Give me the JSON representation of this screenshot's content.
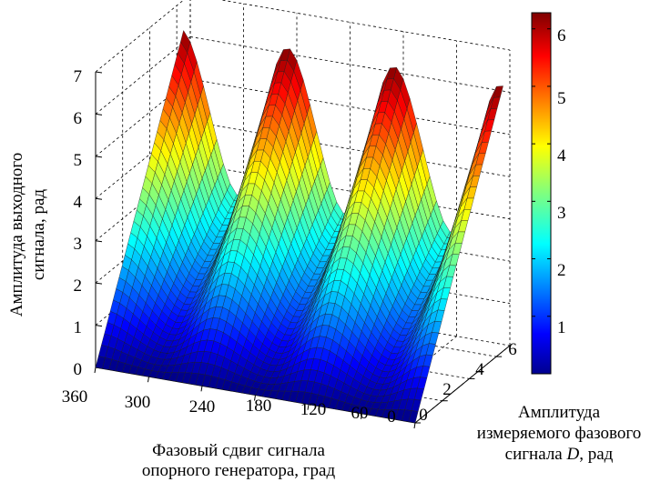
{
  "chart_data": {
    "type": "surface",
    "xlabel": "Фазовый сдвиг сигнала опорного генератора, град",
    "xlabel_lines": [
      "Фазовый сдвиг сигнала",
      "опорного генератора, град"
    ],
    "ylabel_lines": [
      "Амплитуда",
      "измеряемого фазового",
      "сигнала",
      "D",
      ", рад"
    ],
    "zlabel_lines": [
      "Амплитуда выходного",
      "сигнала, рад"
    ],
    "x_ticks": [
      "360",
      "300",
      "240",
      "180",
      "120",
      "60",
      "0"
    ],
    "y_ticks": [
      "0",
      "2",
      "4",
      "6"
    ],
    "z_ticks": [
      "0",
      "1",
      "2",
      "3",
      "4",
      "5",
      "6",
      "7"
    ],
    "colorbar_ticks": [
      "1",
      "2",
      "3",
      "4",
      "5",
      "6"
    ],
    "xlim": [
      0,
      360
    ],
    "ylim": [
      0,
      7
    ],
    "zlim": [
      0,
      7
    ],
    "color_range": [
      0,
      6.28
    ],
    "colormap": "jet",
    "grid": true,
    "colorbar": "right",
    "surface_description": "Output amplitude rises with measured amplitude D; wrap-around ridges every 120 degrees of phase shift",
    "ridge_period_deg": 120,
    "z_max": 6.28
  }
}
